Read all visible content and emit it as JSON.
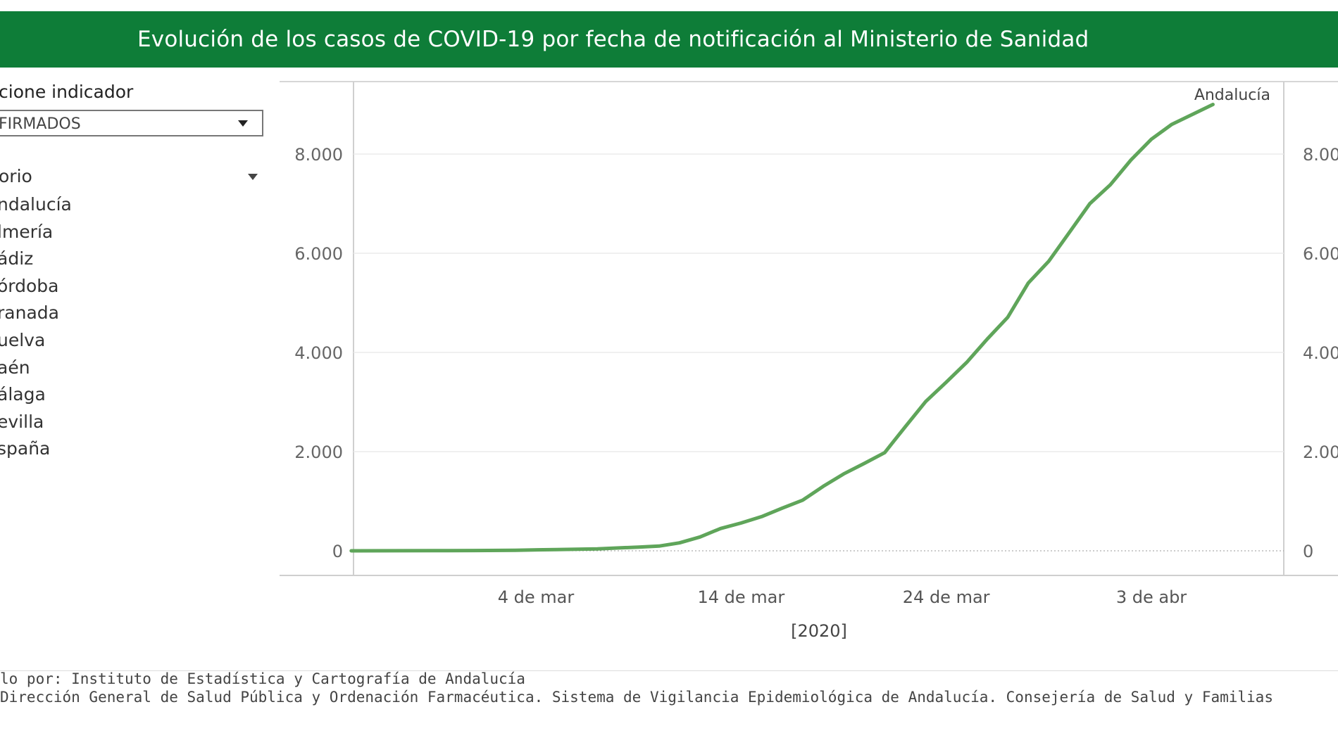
{
  "header": {
    "title": "Evolución de los casos de COVID-19 por fecha de notificación al Ministerio de Sanidad"
  },
  "indicator": {
    "label": "cione indicador",
    "selected": "FIRMADOS"
  },
  "territory": {
    "label": "orio",
    "items": [
      "ndalucía",
      "lmería",
      "ádiz",
      "órdoba",
      "ranada",
      "uelva",
      "aén",
      "álaga",
      "evilla",
      "spaña"
    ]
  },
  "footer": {
    "line1": "lo por: Instituto de Estadística y Cartografía de Andalucía",
    "line2": "Dirección General de Salud Pública y Ordenación Farmacéutica. Sistema de Vigilancia Epidemiológica de Andalucía. Consejería de Salud y Familias"
  },
  "colors": {
    "banner": "#0e7d38",
    "series": "#5fa55a"
  },
  "chart_data": {
    "type": "line",
    "title": "",
    "xlabel": "[2020]",
    "ylabel": "",
    "ylim": [
      0,
      9200
    ],
    "yticks": [
      0,
      2000,
      4000,
      6000,
      8000
    ],
    "ytick_labels_left": [
      "0",
      "2.000",
      "4.000",
      "6.000",
      "8.000"
    ],
    "ytick_labels_right": [
      "0",
      "2.00",
      "4.00",
      "6.00",
      "8.00"
    ],
    "xlim": [
      "2020-02-22",
      "2020-04-15"
    ],
    "xticks": [
      "2020-03-04",
      "2020-03-14",
      "2020-03-24",
      "2020-04-03"
    ],
    "xtick_labels": [
      "4 de mar",
      "14 de mar",
      "24 de mar",
      "3 de abr"
    ],
    "grid": true,
    "series": [
      {
        "name": "Andalucía",
        "x": [
          "2020-02-24",
          "2020-02-26",
          "2020-02-28",
          "2020-03-01",
          "2020-03-03",
          "2020-03-05",
          "2020-03-07",
          "2020-03-09",
          "2020-03-10",
          "2020-03-11",
          "2020-03-12",
          "2020-03-13",
          "2020-03-14",
          "2020-03-15",
          "2020-03-16",
          "2020-03-17",
          "2020-03-18",
          "2020-03-19",
          "2020-03-20",
          "2020-03-21",
          "2020-03-22",
          "2020-03-23",
          "2020-03-24",
          "2020-03-25",
          "2020-03-26",
          "2020-03-27",
          "2020-03-28",
          "2020-03-29",
          "2020-03-30",
          "2020-03-31",
          "2020-04-01",
          "2020-04-02",
          "2020-04-03",
          "2020-04-04",
          "2020-04-05",
          "2020-04-06"
        ],
        "values": [
          0,
          2,
          3,
          5,
          12,
          25,
          40,
          75,
          95,
          160,
          280,
          450,
          560,
          690,
          860,
          1020,
          1300,
          1550,
          1760,
          1980,
          2500,
          3010,
          3400,
          3800,
          4270,
          4710,
          5400,
          5840,
          6420,
          7000,
          7380,
          7880,
          8300,
          8600,
          8800,
          9000
        ]
      }
    ]
  }
}
